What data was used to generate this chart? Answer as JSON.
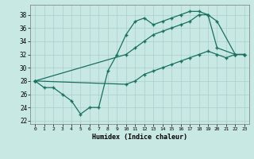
{
  "xlabel": "Humidex (Indice chaleur)",
  "xlim": [
    -0.5,
    23.5
  ],
  "ylim": [
    21.5,
    39.5
  ],
  "yticks": [
    22,
    24,
    26,
    28,
    30,
    32,
    34,
    36,
    38
  ],
  "xticks": [
    0,
    1,
    2,
    3,
    4,
    5,
    6,
    7,
    8,
    9,
    10,
    11,
    12,
    13,
    14,
    15,
    16,
    17,
    18,
    19,
    20,
    21,
    22,
    23
  ],
  "line_color": "#1a7060",
  "bg_color": "#c8e8e4",
  "grid_color": "#aacece",
  "line1_x": [
    0,
    1,
    2,
    3,
    4,
    5,
    6,
    7,
    8,
    9,
    10,
    11,
    12,
    13,
    14,
    15,
    16,
    17,
    18,
    19,
    20,
    22,
    23
  ],
  "line1_y": [
    28,
    27,
    27,
    26,
    25,
    23,
    24,
    24,
    29.5,
    32,
    35,
    37,
    37.5,
    36.5,
    37,
    37.5,
    38,
    38.5,
    38.5,
    38,
    33,
    32,
    32
  ],
  "line2_x": [
    0,
    10,
    11,
    12,
    13,
    14,
    15,
    16,
    17,
    18,
    19,
    20,
    22,
    23
  ],
  "line2_y": [
    28,
    32,
    33,
    34,
    35,
    35.5,
    36,
    36.5,
    37,
    38,
    38,
    37,
    32,
    32
  ],
  "line3_x": [
    0,
    10,
    11,
    12,
    13,
    14,
    15,
    16,
    17,
    18,
    19,
    20,
    21,
    22,
    23
  ],
  "line3_y": [
    28,
    27.5,
    28,
    29,
    29.5,
    30,
    30.5,
    31,
    31.5,
    32,
    32.5,
    32,
    31.5,
    32,
    32
  ]
}
